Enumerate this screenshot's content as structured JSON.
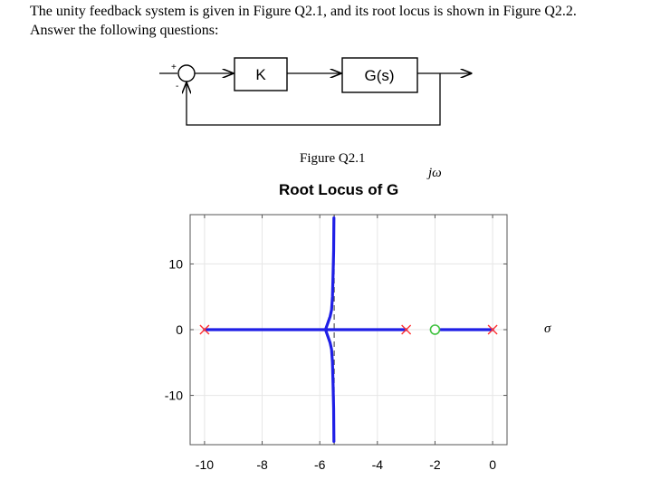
{
  "question": {
    "line1": "The unity feedback system is given in Figure Q2.1, and its root locus is shown in Figure Q2.2.",
    "line2": "Answer the following questions:"
  },
  "block_diagram": {
    "gain_block": "K",
    "plant_block": "G(s)",
    "plus_sign": "+",
    "minus_sign": "-",
    "caption": "Figure Q2.1"
  },
  "chart_data": {
    "type": "scatter",
    "title": "Root Locus of G",
    "ylabel_annotation": "jω",
    "xlabel_annotation": "σ",
    "xlim": [
      -10.5,
      0.5
    ],
    "ylim": [
      -17.5,
      17.5
    ],
    "grid": true,
    "x_ticks": [
      -10,
      -8,
      -6,
      -4,
      -2,
      0
    ],
    "x_tick_labels": [
      "-10",
      "-8",
      "-6",
      "-4",
      "-2",
      "0"
    ],
    "y_ticks": [
      10,
      0,
      -10
    ],
    "y_tick_labels": [
      "10",
      "0",
      "-10"
    ],
    "asymptote_x": -5.5,
    "poles": [
      {
        "x": -10,
        "y": 0
      },
      {
        "x": -3,
        "y": 0
      },
      {
        "x": 0,
        "y": 0
      }
    ],
    "zeros": [
      {
        "x": -2,
        "y": 0
      }
    ],
    "series": [
      {
        "values": [
          [
            -10,
            0
          ],
          [
            -5.8,
            0
          ]
        ]
      },
      {
        "values": [
          [
            -3,
            0
          ],
          [
            -5.8,
            0
          ]
        ]
      },
      {
        "values": [
          [
            0,
            0
          ],
          [
            -2,
            0
          ]
        ]
      },
      {
        "values": [
          [
            -5.8,
            0
          ],
          [
            -5.72,
            1
          ],
          [
            -5.64,
            2
          ],
          [
            -5.59,
            3
          ],
          [
            -5.56,
            5
          ],
          [
            -5.54,
            8
          ],
          [
            -5.52,
            12
          ],
          [
            -5.51,
            17
          ]
        ]
      },
      {
        "values": [
          [
            -5.8,
            0
          ],
          [
            -5.72,
            -1
          ],
          [
            -5.64,
            -2
          ],
          [
            -5.59,
            -3
          ],
          [
            -5.56,
            -5
          ],
          [
            -5.54,
            -8
          ],
          [
            -5.52,
            -12
          ],
          [
            -5.51,
            -17
          ]
        ]
      }
    ],
    "colors": {
      "locus": "#1f1fe6",
      "pole": "#ff3030",
      "zero": "#3fc23f"
    }
  }
}
